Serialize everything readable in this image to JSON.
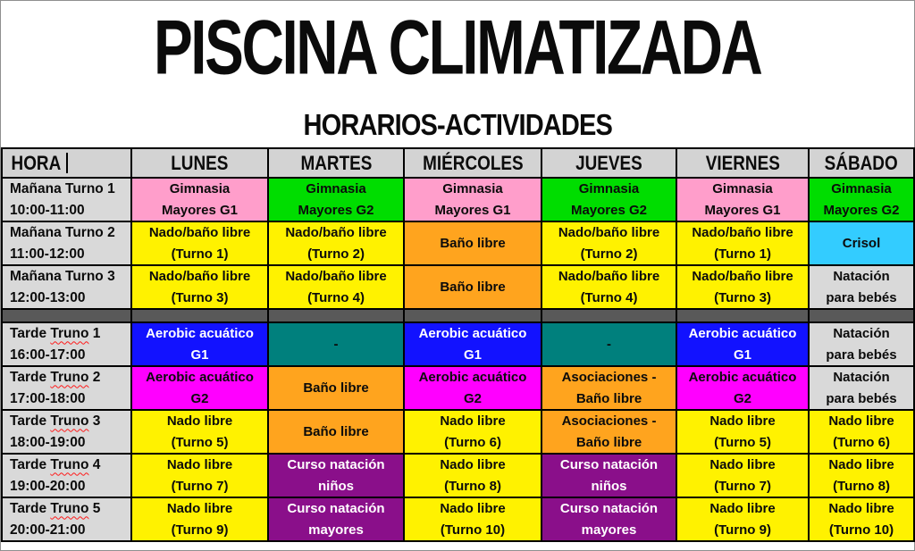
{
  "page": {
    "title": "PISCINA CLIMATIZADA",
    "subtitle": "HORARIOS-ACTIVIDADES"
  },
  "colors": {
    "pink": "#ff9ecb",
    "green": "#00dd00",
    "yellow": "#fff200",
    "orange": "#ffa41e",
    "cyan": "#33ccff",
    "blue": "#1212ff",
    "teal": "#00807d",
    "magenta": "#ff00ff",
    "purple": "#8a0f8a",
    "gray": "#d9d9d9",
    "darkgray": "#595959"
  },
  "table": {
    "columns": [
      "HORA",
      "LUNES",
      "MARTES",
      "MIÉRCOLES",
      "JUEVES",
      "VIERNES",
      "SÁBADO"
    ],
    "header_caret_visible": true,
    "rows": [
      {
        "label_line1": "Mañana Turno 1",
        "label_line2": "10:00-11:00",
        "cells": [
          {
            "lines": [
              "Gimnasia",
              "Mayores G1"
            ],
            "bg": "pink",
            "fg": "black"
          },
          {
            "lines": [
              "Gimnasia",
              "Mayores G2"
            ],
            "bg": "green",
            "fg": "black"
          },
          {
            "lines": [
              "Gimnasia",
              "Mayores G1"
            ],
            "bg": "pink",
            "fg": "black"
          },
          {
            "lines": [
              "Gimnasia",
              "Mayores G2"
            ],
            "bg": "green",
            "fg": "black"
          },
          {
            "lines": [
              "Gimnasia",
              "Mayores G1"
            ],
            "bg": "pink",
            "fg": "black"
          },
          {
            "lines": [
              "Gimnasia",
              "Mayores G2"
            ],
            "bg": "green",
            "fg": "black"
          }
        ]
      },
      {
        "label_line1": "Mañana Turno 2",
        "label_line2": "11:00-12:00",
        "cells": [
          {
            "lines": [
              "Nado/baño libre",
              "(Turno 1)"
            ],
            "bg": "yellow",
            "fg": "black"
          },
          {
            "lines": [
              "Nado/baño libre",
              "(Turno 2)"
            ],
            "bg": "yellow",
            "fg": "black"
          },
          {
            "lines": [
              "Baño libre"
            ],
            "bg": "orange",
            "fg": "black"
          },
          {
            "lines": [
              "Nado/baño libre",
              "(Turno 2)"
            ],
            "bg": "yellow",
            "fg": "black"
          },
          {
            "lines": [
              "Nado/baño libre",
              "(Turno 1)"
            ],
            "bg": "yellow",
            "fg": "black"
          },
          {
            "lines": [
              "Crisol"
            ],
            "bg": "cyan",
            "fg": "black"
          }
        ]
      },
      {
        "label_line1": "Mañana Turno 3",
        "label_line2": "12:00-13:00",
        "cells": [
          {
            "lines": [
              "Nado/baño libre",
              "(Turno 3)"
            ],
            "bg": "yellow",
            "fg": "black"
          },
          {
            "lines": [
              "Nado/baño libre",
              "(Turno 4)"
            ],
            "bg": "yellow",
            "fg": "black"
          },
          {
            "lines": [
              "Baño libre"
            ],
            "bg": "orange",
            "fg": "black"
          },
          {
            "lines": [
              "Nado/baño libre",
              "(Turno 4)"
            ],
            "bg": "yellow",
            "fg": "black"
          },
          {
            "lines": [
              "Nado/baño libre",
              "(Turno 3)"
            ],
            "bg": "yellow",
            "fg": "black"
          },
          {
            "lines": [
              "Natación",
              "para bebés"
            ],
            "bg": "gray",
            "fg": "black"
          }
        ]
      },
      {
        "separator": true
      },
      {
        "label_line1": "Tarde Truno 1",
        "label_line2": "16:00-17:00",
        "squiggle": "Truno",
        "cells": [
          {
            "lines": [
              "Aerobic acuático",
              "G1"
            ],
            "bg": "blue",
            "fg": "white"
          },
          {
            "lines": [
              "-"
            ],
            "bg": "teal",
            "fg": "black"
          },
          {
            "lines": [
              "Aerobic acuático",
              "G1"
            ],
            "bg": "blue",
            "fg": "white"
          },
          {
            "lines": [
              "-"
            ],
            "bg": "teal",
            "fg": "black"
          },
          {
            "lines": [
              "Aerobic acuático",
              "G1"
            ],
            "bg": "blue",
            "fg": "white"
          },
          {
            "lines": [
              "Natación",
              "para bebés"
            ],
            "bg": "gray",
            "fg": "black"
          }
        ]
      },
      {
        "label_line1": "Tarde Truno 2",
        "label_line2": "17:00-18:00",
        "squiggle": "Truno",
        "cells": [
          {
            "lines": [
              "Aerobic acuático",
              "G2"
            ],
            "bg": "magenta",
            "fg": "black"
          },
          {
            "lines": [
              "Baño libre"
            ],
            "bg": "orange",
            "fg": "black"
          },
          {
            "lines": [
              "Aerobic acuático",
              "G2"
            ],
            "bg": "magenta",
            "fg": "black"
          },
          {
            "lines": [
              "Asociaciones -",
              "Baño libre"
            ],
            "bg": "orange",
            "fg": "black"
          },
          {
            "lines": [
              "Aerobic acuático",
              "G2"
            ],
            "bg": "magenta",
            "fg": "black"
          },
          {
            "lines": [
              "Natación",
              "para bebés"
            ],
            "bg": "gray",
            "fg": "black"
          }
        ]
      },
      {
        "label_line1": "Tarde Truno 3",
        "label_line2": "18:00-19:00",
        "squiggle": "Truno",
        "cells": [
          {
            "lines": [
              "Nado libre",
              "(Turno 5)"
            ],
            "bg": "yellow",
            "fg": "black"
          },
          {
            "lines": [
              "Baño libre"
            ],
            "bg": "orange",
            "fg": "black"
          },
          {
            "lines": [
              "Nado libre",
              "(Turno 6)"
            ],
            "bg": "yellow",
            "fg": "black"
          },
          {
            "lines": [
              "Asociaciones -",
              "Baño libre"
            ],
            "bg": "orange",
            "fg": "black"
          },
          {
            "lines": [
              "Nado libre",
              "(Turno 5)"
            ],
            "bg": "yellow",
            "fg": "black"
          },
          {
            "lines": [
              "Nado libre",
              "(Turno 6)"
            ],
            "bg": "yellow",
            "fg": "black"
          }
        ]
      },
      {
        "label_line1": "Tarde Truno 4",
        "label_line2": "19:00-20:00",
        "squiggle": "Truno",
        "cells": [
          {
            "lines": [
              "Nado libre",
              "(Turno 7)"
            ],
            "bg": "yellow",
            "fg": "black"
          },
          {
            "lines": [
              "Curso natación",
              "niños"
            ],
            "bg": "purple",
            "fg": "white"
          },
          {
            "lines": [
              "Nado libre",
              "(Turno 8)"
            ],
            "bg": "yellow",
            "fg": "black"
          },
          {
            "lines": [
              "Curso natación",
              "niños"
            ],
            "bg": "purple",
            "fg": "white"
          },
          {
            "lines": [
              "Nado libre",
              "(Turno 7)"
            ],
            "bg": "yellow",
            "fg": "black"
          },
          {
            "lines": [
              "Nado libre",
              "(Turno 8)"
            ],
            "bg": "yellow",
            "fg": "black"
          }
        ]
      },
      {
        "label_line1": "Tarde Truno 5",
        "label_line2": "20:00-21:00",
        "squiggle": "Truno",
        "cells": [
          {
            "lines": [
              "Nado libre",
              "(Turno 9)"
            ],
            "bg": "yellow",
            "fg": "black"
          },
          {
            "lines": [
              "Curso natación",
              "mayores"
            ],
            "bg": "purple",
            "fg": "white"
          },
          {
            "lines": [
              "Nado libre",
              "(Turno 10)"
            ],
            "bg": "yellow",
            "fg": "black"
          },
          {
            "lines": [
              "Curso natación",
              "mayores"
            ],
            "bg": "purple",
            "fg": "white"
          },
          {
            "lines": [
              "Nado libre",
              "(Turno 9)"
            ],
            "bg": "yellow",
            "fg": "black"
          },
          {
            "lines": [
              "Nado libre",
              "(Turno 10)"
            ],
            "bg": "yellow",
            "fg": "black"
          }
        ]
      }
    ]
  }
}
